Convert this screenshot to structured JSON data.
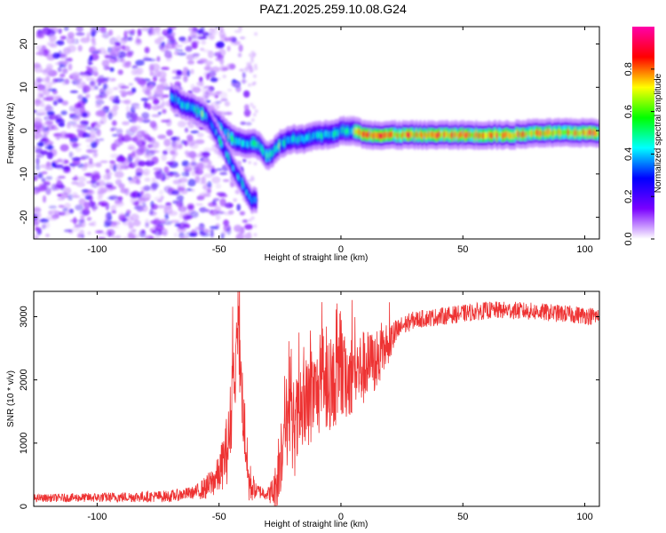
{
  "title": "PAZ1.2025.259.10.08.G24",
  "chart_data": [
    {
      "type": "heatmap",
      "xlabel": "Height of straight line (km)",
      "ylabel": "Frequency (Hz)",
      "xlim": [
        -126,
        106
      ],
      "ylim": [
        -25,
        24
      ],
      "xticks": [
        -100,
        -50,
        0,
        50,
        100
      ],
      "yticks": [
        -20,
        -10,
        0,
        10,
        20
      ],
      "colorbar": {
        "label": "Normalized spectral amplitude",
        "range": [
          0,
          1
        ],
        "ticks": [
          "0.0",
          "0.2",
          "0.4",
          "0.6",
          "0.8"
        ],
        "tick_values": [
          0,
          0.2,
          0.4,
          0.6,
          0.8
        ],
        "colormap": [
          "#ffffff",
          "#7a00ff",
          "#0000ff",
          "#00ffff",
          "#00ff00",
          "#ffff00",
          "#ff0000",
          "#ff00aa"
        ]
      },
      "ridge": {
        "x": [
          -70,
          -65,
          -60,
          -55,
          -50,
          -45,
          -40,
          -35,
          -30,
          -25,
          -20,
          -15,
          -10,
          -5,
          0,
          5,
          10,
          20,
          30,
          40,
          50,
          60,
          70,
          80,
          90,
          100,
          106
        ],
        "y": [
          8,
          6,
          5,
          3,
          1,
          -2,
          -3,
          -3,
          -6,
          -3,
          -2,
          -2,
          -1,
          -1,
          0,
          0,
          -1,
          -1,
          -1,
          -1,
          -1,
          -1,
          -1,
          -0.5,
          -0.5,
          -0.5,
          -0.5
        ]
      },
      "ridge_branch": {
        "x": [
          -55,
          -50,
          -45,
          -40,
          -37,
          -35
        ],
        "y": [
          3,
          -2,
          -8,
          -13,
          -16,
          -16
        ]
      }
    },
    {
      "type": "line",
      "xlabel": "Height of straight line (km)",
      "ylabel": "SNR (10 * v/v)",
      "xlim": [
        -126,
        106
      ],
      "ylim": [
        0,
        3400
      ],
      "xticks": [
        -100,
        -50,
        0,
        50,
        100
      ],
      "yticks": [
        0,
        1000,
        2000,
        3000
      ],
      "color": "#ee3333",
      "envelope": {
        "x": [
          -126,
          -100,
          -70,
          -60,
          -55,
          -50,
          -46,
          -44,
          -42,
          -40,
          -38,
          -35,
          -30,
          -27,
          -25,
          -23,
          -20,
          -18,
          -15,
          -12,
          -10,
          -5,
          0,
          5,
          10,
          15,
          20,
          25,
          30,
          40,
          50,
          60,
          70,
          80,
          90,
          100,
          106
        ],
        "y": [
          130,
          140,
          160,
          220,
          300,
          500,
          1000,
          2000,
          2500,
          1500,
          400,
          250,
          200,
          250,
          800,
          1400,
          1200,
          1300,
          1500,
          1700,
          1800,
          1900,
          2000,
          2100,
          2200,
          2300,
          2600,
          2850,
          2950,
          3000,
          3050,
          3100,
          3100,
          3080,
          3050,
          3020,
          3000
        ]
      },
      "noise": {
        "x": [
          -126,
          -60,
          -50,
          -45,
          -40,
          -35,
          -30,
          -28,
          -25,
          -20,
          -10,
          0,
          10,
          20,
          25,
          30,
          106
        ],
        "amp": [
          60,
          100,
          300,
          700,
          600,
          120,
          100,
          250,
          700,
          800,
          700,
          700,
          600,
          300,
          160,
          140,
          140
        ]
      }
    }
  ]
}
